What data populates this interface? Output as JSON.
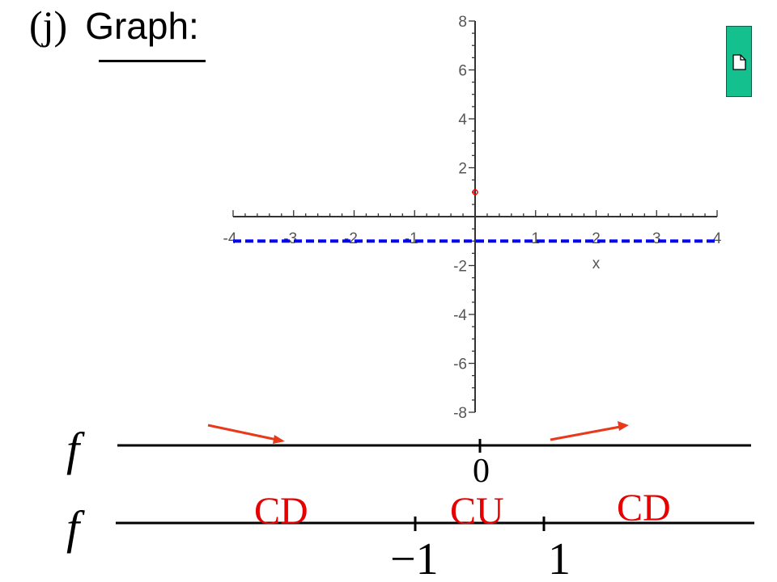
{
  "heading": {
    "part_label": "(j)",
    "title": "Graph:"
  },
  "chart_data": {
    "type": "scatter",
    "xlabel": "x",
    "ylabel": "",
    "xlim": [
      -4,
      4
    ],
    "ylim": [
      -8,
      8
    ],
    "x_ticks": [
      -4,
      -3,
      -2,
      -1,
      1,
      2,
      3,
      4
    ],
    "y_ticks": [
      -8,
      -6,
      -4,
      -2,
      2,
      4,
      6,
      8
    ],
    "grid": false,
    "series": [
      {
        "kind": "dashed-horizontal-line",
        "y": -1,
        "color": "#0000ff"
      },
      {
        "kind": "point",
        "x": 0,
        "y": 1,
        "color": "#ff0000"
      }
    ]
  },
  "number_lines": {
    "first": {
      "fn_label": "f",
      "tick_label": "0",
      "arrow_color": "#e8391b"
    },
    "second": {
      "fn_label": "f",
      "tick_labels": [
        "−1",
        "1"
      ],
      "intervals": [
        "CD",
        "CU",
        "CD"
      ],
      "interval_color": "#e60000"
    }
  },
  "icons": {
    "doc_button": "document-icon"
  }
}
